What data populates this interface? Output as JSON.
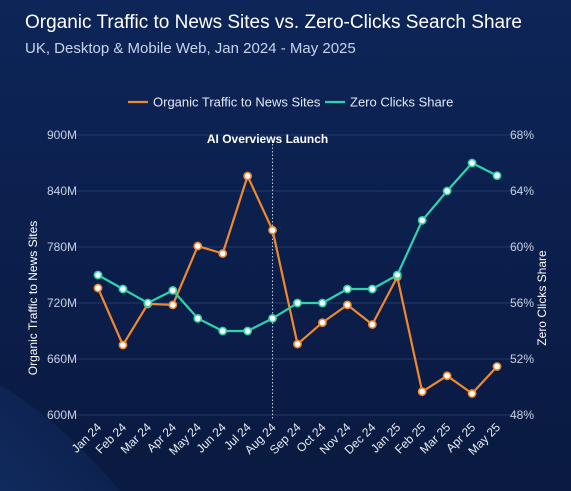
{
  "chart_data": {
    "type": "line",
    "title": "Organic Traffic to News Sites vs. Zero-Clicks Search Share",
    "subtitle": "UK, Desktop & Mobile Web, Jan 2024 - May 2025",
    "categories": [
      "Jan 24",
      "Feb 24",
      "Mar 24",
      "Apr 24",
      "May 24",
      "Jun 24",
      "Jul 24",
      "Aug 24",
      "Sep 24",
      "Oct 24",
      "Nov 24",
      "Dec 24",
      "Jan 25",
      "Feb 25",
      "Mar 25",
      "Apr 25",
      "May 25"
    ],
    "series": [
      {
        "name": "Organic Traffic to News Sites",
        "axis": "left",
        "color": "#f0892e",
        "values": [
          736,
          675,
          719,
          718,
          781,
          773,
          856,
          798,
          676,
          699,
          718,
          697,
          748,
          625,
          642,
          623,
          652
        ]
      },
      {
        "name": "Zero Clicks Share",
        "axis": "right",
        "color": "#2ed3ad",
        "values": [
          58.0,
          57.0,
          56.0,
          56.9,
          54.9,
          54.0,
          54.0,
          54.9,
          56.0,
          56.0,
          57.0,
          57.0,
          58.0,
          61.9,
          64.0,
          66.0,
          65.1
        ]
      }
    ],
    "ylabel": "Organic Traffic to News Sites",
    "ylim": [
      600,
      900
    ],
    "yticks": [
      "600M",
      "660M",
      "720M",
      "780M",
      "840M",
      "900M"
    ],
    "y2label": "Zero Clicks Share",
    "y2lim": [
      48,
      68
    ],
    "y2ticks": [
      "48%",
      "52%",
      "56%",
      "60%",
      "64%",
      "68%"
    ],
    "legend_placement": "top-center",
    "grid": true,
    "annotation": {
      "text": "AI Overviews Launch",
      "at": "Aug 24",
      "style": "dotted vertical line"
    }
  }
}
